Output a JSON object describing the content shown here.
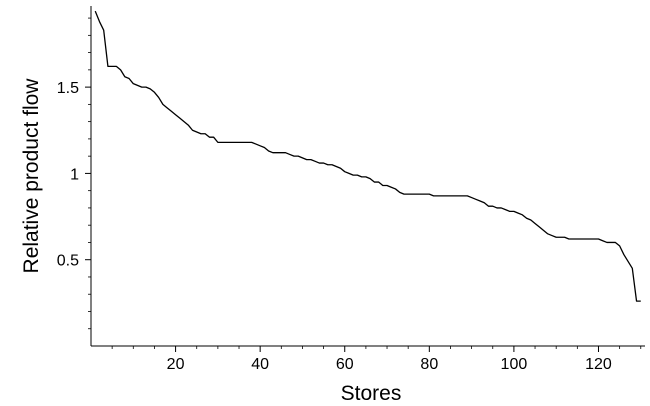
{
  "chart_data": {
    "type": "line",
    "title": "",
    "xlabel": "Stores",
    "ylabel": "Relative product flow",
    "xlim": [
      0,
      131
    ],
    "ylim": [
      0,
      1.97
    ],
    "x_ticks": [
      {
        "value": 20,
        "label": "20"
      },
      {
        "value": 40,
        "label": "40"
      },
      {
        "value": 60,
        "label": "60"
      },
      {
        "value": 80,
        "label": "80"
      },
      {
        "value": 100,
        "label": "100"
      },
      {
        "value": 120,
        "label": "120"
      }
    ],
    "y_ticks": [
      {
        "value": 0.5,
        "label": "0.5"
      },
      {
        "value": 1.0,
        "label": "1"
      },
      {
        "value": 1.5,
        "label": "1.5"
      }
    ],
    "grid": false,
    "legend": "none",
    "line_color": "#000000",
    "series": [
      {
        "x": [
          1,
          2,
          3,
          4,
          5,
          6,
          7,
          8,
          9,
          10,
          11,
          12,
          13,
          14,
          15,
          16,
          17,
          18,
          19,
          20,
          21,
          22,
          23,
          24,
          25,
          26,
          27,
          28,
          29,
          30,
          31,
          32,
          33,
          34,
          35,
          36,
          37,
          38,
          39,
          40,
          41,
          42,
          43,
          44,
          45,
          46,
          47,
          48,
          49,
          50,
          51,
          52,
          53,
          54,
          55,
          56,
          57,
          58,
          59,
          60,
          61,
          62,
          63,
          64,
          65,
          66,
          67,
          68,
          69,
          70,
          71,
          72,
          73,
          74,
          75,
          76,
          77,
          78,
          79,
          80,
          81,
          82,
          83,
          84,
          85,
          86,
          87,
          88,
          89,
          90,
          91,
          92,
          93,
          94,
          95,
          96,
          97,
          98,
          99,
          100,
          101,
          102,
          103,
          104,
          105,
          106,
          107,
          108,
          109,
          110,
          111,
          112,
          113,
          114,
          115,
          116,
          117,
          118,
          119,
          120,
          121,
          122,
          123,
          124,
          125,
          126,
          127,
          128,
          129,
          130
        ],
        "values": [
          1.94,
          1.88,
          1.83,
          1.62,
          1.62,
          1.62,
          1.6,
          1.56,
          1.55,
          1.52,
          1.51,
          1.5,
          1.5,
          1.49,
          1.47,
          1.44,
          1.4,
          1.38,
          1.36,
          1.34,
          1.32,
          1.3,
          1.28,
          1.25,
          1.24,
          1.23,
          1.23,
          1.21,
          1.21,
          1.18,
          1.18,
          1.18,
          1.18,
          1.18,
          1.18,
          1.18,
          1.18,
          1.18,
          1.17,
          1.16,
          1.15,
          1.13,
          1.12,
          1.12,
          1.12,
          1.12,
          1.11,
          1.1,
          1.1,
          1.09,
          1.08,
          1.08,
          1.07,
          1.06,
          1.06,
          1.05,
          1.05,
          1.04,
          1.03,
          1.01,
          1.0,
          0.99,
          0.99,
          0.98,
          0.98,
          0.97,
          0.95,
          0.95,
          0.93,
          0.93,
          0.92,
          0.91,
          0.89,
          0.88,
          0.88,
          0.88,
          0.88,
          0.88,
          0.88,
          0.88,
          0.87,
          0.87,
          0.87,
          0.87,
          0.87,
          0.87,
          0.87,
          0.87,
          0.87,
          0.86,
          0.85,
          0.84,
          0.83,
          0.81,
          0.81,
          0.8,
          0.8,
          0.79,
          0.78,
          0.78,
          0.77,
          0.76,
          0.74,
          0.73,
          0.71,
          0.69,
          0.67,
          0.65,
          0.64,
          0.63,
          0.63,
          0.63,
          0.62,
          0.62,
          0.62,
          0.62,
          0.62,
          0.62,
          0.62,
          0.62,
          0.61,
          0.6,
          0.6,
          0.6,
          0.58,
          0.53,
          0.49,
          0.45,
          0.26,
          0.26
        ]
      }
    ]
  }
}
